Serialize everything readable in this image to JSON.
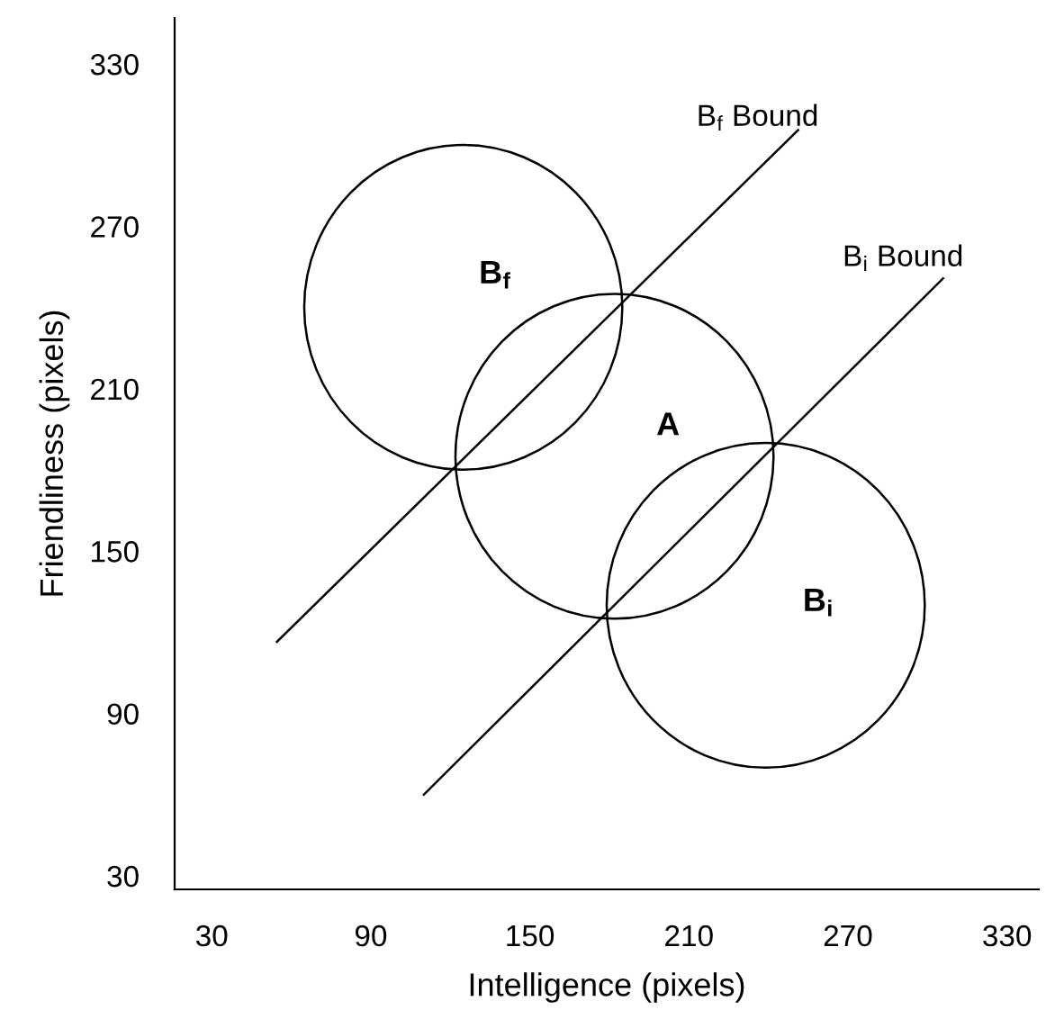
{
  "chart_data": {
    "type": "line",
    "xlabel": "Intelligence (pixels)",
    "ylabel": "Friendliness (pixels)",
    "xlim": [
      16,
      342
    ],
    "ylim": [
      25,
      347
    ],
    "xticks": [
      30,
      90,
      150,
      210,
      270,
      330
    ],
    "yticks": [
      30,
      90,
      150,
      210,
      270,
      330
    ],
    "grid": false,
    "marker": "none",
    "line_style": "solid",
    "series": [
      {
        "color": "#000000",
        "x": [
          54.6,
          251.2
        ],
        "values": [
          116.5,
          305.6
        ]
      },
      {
        "color": "#000000",
        "x": [
          110,
          305.9
        ],
        "values": [
          60,
          250.8
        ]
      }
    ],
    "annotations": [
      "B$_{f}$ Bound",
      "B$_{i}$ Bound",
      "B$_{f}$",
      "A",
      "B$_{i}$"
    ]
  }
}
